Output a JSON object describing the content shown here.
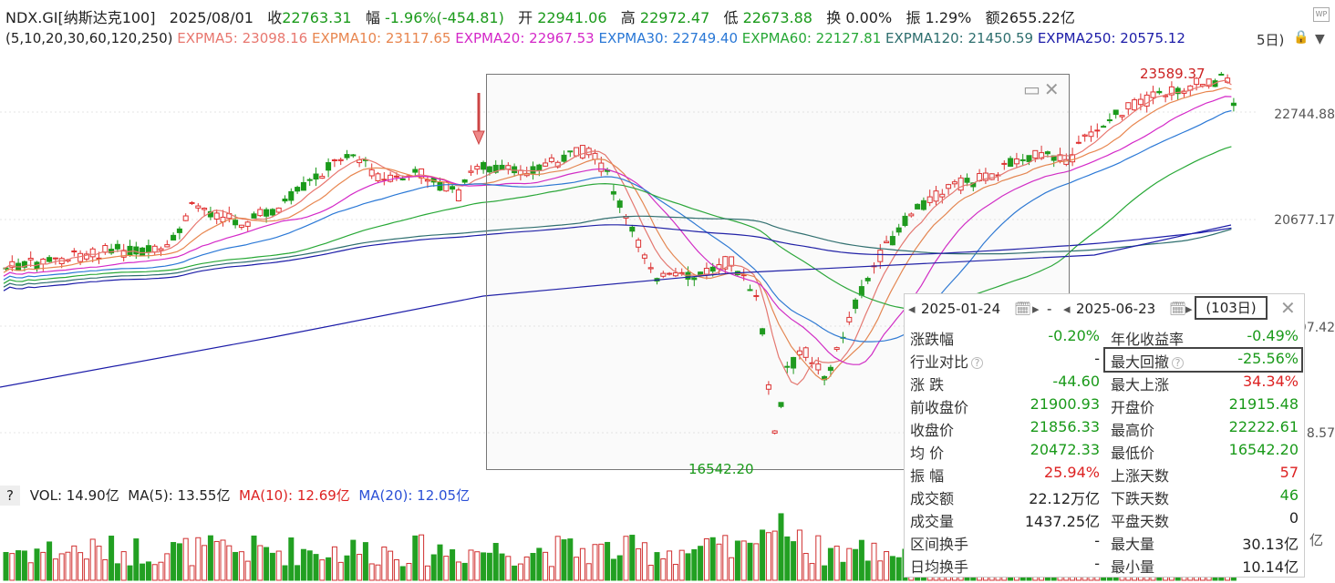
{
  "header": {
    "symbol": "NDX.GI[纳斯达克100]",
    "date": "2025/08/01",
    "close_label": "收",
    "close": "22763.31",
    "chg_label": "幅",
    "chg": "-1.96%(-454.81)",
    "open_label": "开",
    "open": "22941.06",
    "high_label": "高",
    "high": "22972.47",
    "low_label": "低",
    "low": "22673.88",
    "turnover_label": "换",
    "turnover": "0.00%",
    "amp_label": "振",
    "amp": "1.29%",
    "amount_label": "额",
    "amount": "2655.22亿"
  },
  "expma": {
    "params": "(5,10,20,30,60,120,250)",
    "items": [
      {
        "label": "EXPMA5: 23098.16",
        "color": "#e8776f"
      },
      {
        "label": "EXPMA10: 23117.65",
        "color": "#e8864f"
      },
      {
        "label": "EXPMA20: 22967.53",
        "color": "#d428c8"
      },
      {
        "label": "EXPMA30: 22749.40",
        "color": "#2a78d6"
      },
      {
        "label": "EXPMA60: 22127.81",
        "color": "#27a836"
      },
      {
        "label": "EXPMA120: 21450.59",
        "color": "#2d6e6e"
      },
      {
        "label": "EXPMA250: 20575.12",
        "color": "#1c1ca8"
      }
    ],
    "tail": "5日)"
  },
  "y_axis": [
    "22744.88",
    "20677.17",
    "97.42",
    "8.57"
  ],
  "annotations": {
    "max_price": "23589.37",
    "min_price": "16542.20"
  },
  "volume": {
    "q": "?",
    "vol": "VOL: 14.90亿",
    "ma5": "MA(5): 13.55亿",
    "ma10": "MA(10): 12.69亿",
    "ma20": "MA(20): 12.05亿",
    "unit": "亿"
  },
  "panel": {
    "start_date": "2025-01-24",
    "sep": "-",
    "end_date": "2025-06-23",
    "days": "(103日)",
    "rows": [
      {
        "l1": "涨跌幅",
        "v1": "-0.20%",
        "c1": "g",
        "l2": "年化收益率",
        "v2": "-0.49%",
        "c2": "g"
      },
      {
        "l1": "行业对比",
        "v1": "-",
        "c1": "dk",
        "l2": "最大回撤",
        "v2": "-25.56%",
        "c2": "g"
      },
      {
        "l1": "涨 跌",
        "v1": "-44.60",
        "c1": "g",
        "l2": "最大上涨",
        "v2": "34.34%",
        "c2": "r"
      },
      {
        "l1": "前收盘价",
        "v1": "21900.93",
        "c1": "g",
        "l2": "开盘价",
        "v2": "21915.48",
        "c2": "g"
      },
      {
        "l1": "收盘价",
        "v1": "21856.33",
        "c1": "g",
        "l2": "最高价",
        "v2": "22222.61",
        "c2": "g"
      },
      {
        "l1": "均 价",
        "v1": "20472.33",
        "c1": "g",
        "l2": "最低价",
        "v2": "16542.20",
        "c2": "g"
      },
      {
        "l1": "振 幅",
        "v1": "25.94%",
        "c1": "r",
        "l2": "上涨天数",
        "v2": "57",
        "c2": "r"
      },
      {
        "l1": "成交额",
        "v1": "22.12万亿",
        "c1": "dk",
        "l2": "下跌天数",
        "v2": "46",
        "c2": "g"
      },
      {
        "l1": "成交量",
        "v1": "1437.25亿",
        "c1": "dk",
        "l2": "平盘天数",
        "v2": "0",
        "c2": "dk"
      },
      {
        "l1": "区间换手",
        "v1": "-",
        "c1": "dk",
        "l2": "最大量",
        "v2": "30.13亿",
        "c2": "dk"
      },
      {
        "l1": "日均换手",
        "v1": "-",
        "c1": "dk",
        "l2": "最小量",
        "v2": "10.14亿",
        "c2": "dk"
      }
    ]
  }
}
